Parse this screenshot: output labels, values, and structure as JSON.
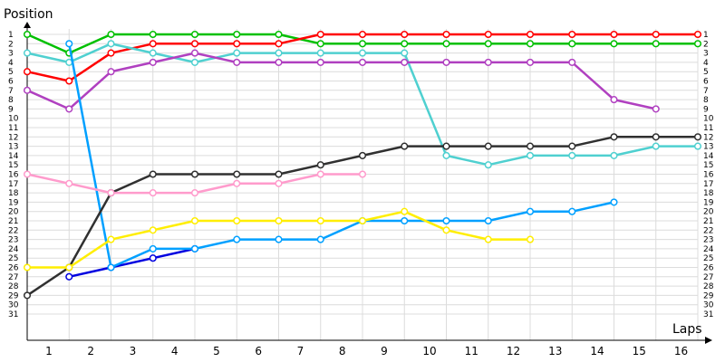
{
  "chart_data": {
    "type": "line",
    "ylabel": "Position",
    "xlabel": "Laps",
    "ylim": [
      1,
      31
    ],
    "y_inverted": true,
    "y_ticks": [
      1,
      2,
      3,
      4,
      5,
      6,
      7,
      8,
      9,
      10,
      11,
      12,
      13,
      14,
      15,
      16,
      17,
      18,
      19,
      20,
      21,
      22,
      23,
      24,
      25,
      26,
      27,
      28,
      29,
      30,
      31
    ],
    "x_ticks": [
      1,
      2,
      3,
      4,
      5,
      6,
      7,
      8,
      9,
      10,
      11,
      12,
      13,
      14,
      15,
      16
    ],
    "x_range": [
      0,
      16
    ],
    "grid": true,
    "series": [
      {
        "color": "#00c000",
        "values": [
          1,
          3,
          1,
          1,
          1,
          1,
          1,
          2,
          2,
          2,
          2,
          2,
          2,
          2,
          2,
          2,
          2
        ]
      },
      {
        "color": "#ff0000",
        "values": [
          5,
          6,
          3,
          2,
          2,
          2,
          2,
          1,
          1,
          1,
          1,
          1,
          1,
          1,
          1,
          1,
          1
        ]
      },
      {
        "color": "#0000e0",
        "values": [
          null,
          27,
          26,
          25,
          24
        ]
      },
      {
        "color": "#4fd0d0",
        "values": [
          3,
          4,
          2,
          3,
          4,
          3,
          3,
          3,
          3,
          3,
          14,
          15,
          14,
          14,
          14,
          13,
          13
        ]
      },
      {
        "color": "#b040c0",
        "values": [
          7,
          9,
          5,
          4,
          3,
          4,
          4,
          4,
          4,
          4,
          4,
          4,
          4,
          4,
          8,
          9
        ]
      },
      {
        "color": "#00a0ff",
        "values": [
          null,
          2,
          26,
          24,
          24,
          23,
          23,
          23,
          21,
          21,
          21,
          21,
          20,
          20,
          19
        ]
      },
      {
        "color": "#303030",
        "values": [
          29,
          26,
          18,
          16,
          16,
          16,
          16,
          15,
          14,
          13,
          13,
          13,
          13,
          13,
          12,
          12,
          12
        ]
      },
      {
        "color": "#ffee00",
        "values": [
          26,
          26,
          23,
          22,
          21,
          21,
          21,
          21,
          21,
          20,
          22,
          23,
          23
        ]
      },
      {
        "color": "#ff9bcc",
        "values": [
          16,
          17,
          18,
          18,
          18,
          17,
          17,
          16,
          16
        ]
      }
    ],
    "end_labels": [
      1,
      2,
      3,
      4,
      5,
      6,
      7,
      8,
      9,
      10,
      11,
      12,
      13,
      14,
      15,
      16,
      17,
      18,
      19,
      20,
      21,
      22,
      23,
      24,
      25,
      26,
      27,
      28,
      29,
      30,
      31
    ]
  }
}
